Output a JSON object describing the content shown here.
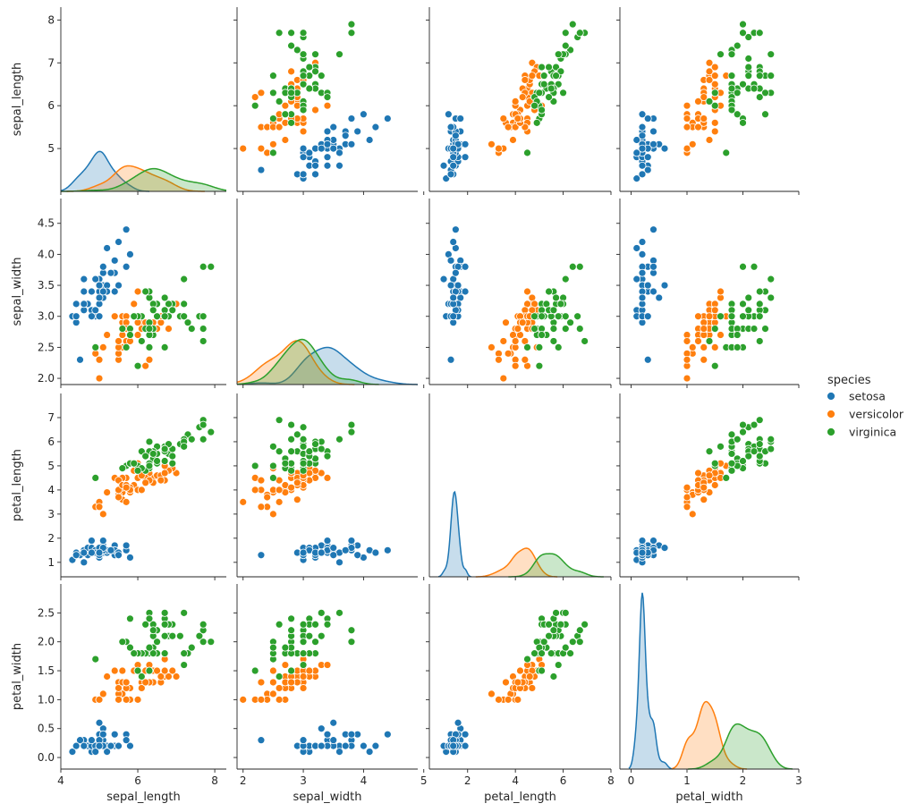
{
  "chart_data": {
    "type": "pairplot",
    "variables": [
      "sepal_length",
      "sepal_width",
      "petal_length",
      "petal_width"
    ],
    "hue": "species",
    "legend": {
      "title": "species",
      "entries": [
        "setosa",
        "versicolor",
        "virginica"
      ],
      "placement": "right"
    },
    "colors": {
      "setosa": "#1f77b4",
      "versicolor": "#ff7f0e",
      "virginica": "#2ca02c"
    },
    "axes": {
      "sepal_length": {
        "range": [
          4.0,
          8.3
        ],
        "ticks": [
          "4",
          "6",
          "8"
        ],
        "ticks_left": [
          "5",
          "6",
          "7",
          "8"
        ]
      },
      "sepal_width": {
        "range": [
          1.9,
          4.9
        ],
        "ticks": [
          "2",
          "3",
          "4",
          "5"
        ],
        "ticks_left": [
          "2.0",
          "2.5",
          "3.0",
          "3.5",
          "4.0",
          "4.5"
        ]
      },
      "petal_length": {
        "range": [
          0.4,
          8.0
        ],
        "ticks": [
          "2",
          "4",
          "6",
          "8"
        ],
        "ticks_left": [
          "1",
          "2",
          "3",
          "4",
          "5",
          "6",
          "7"
        ]
      },
      "petal_width": {
        "range": [
          -0.2,
          3.0
        ],
        "ticks": [
          "0",
          "1",
          "2",
          "3"
        ],
        "ticks_left": [
          "0.0",
          "0.5",
          "1.0",
          "1.5",
          "2.0",
          "2.5"
        ]
      }
    },
    "diagonal": "kde",
    "offdiagonal": "scatter",
    "data": {
      "setosa": [
        [
          5.1,
          3.5,
          1.4,
          0.2
        ],
        [
          4.9,
          3.0,
          1.4,
          0.2
        ],
        [
          4.7,
          3.2,
          1.3,
          0.2
        ],
        [
          4.6,
          3.1,
          1.5,
          0.2
        ],
        [
          5.0,
          3.6,
          1.4,
          0.2
        ],
        [
          5.4,
          3.9,
          1.7,
          0.4
        ],
        [
          4.6,
          3.4,
          1.4,
          0.3
        ],
        [
          5.0,
          3.4,
          1.5,
          0.2
        ],
        [
          4.4,
          2.9,
          1.4,
          0.2
        ],
        [
          4.9,
          3.1,
          1.5,
          0.1
        ],
        [
          5.4,
          3.7,
          1.5,
          0.2
        ],
        [
          4.8,
          3.4,
          1.6,
          0.2
        ],
        [
          4.8,
          3.0,
          1.4,
          0.1
        ],
        [
          4.3,
          3.0,
          1.1,
          0.1
        ],
        [
          5.8,
          4.0,
          1.2,
          0.2
        ],
        [
          5.7,
          4.4,
          1.5,
          0.4
        ],
        [
          5.4,
          3.9,
          1.3,
          0.4
        ],
        [
          5.1,
          3.5,
          1.4,
          0.3
        ],
        [
          5.7,
          3.8,
          1.7,
          0.3
        ],
        [
          5.1,
          3.8,
          1.5,
          0.3
        ],
        [
          5.4,
          3.4,
          1.7,
          0.2
        ],
        [
          5.1,
          3.7,
          1.5,
          0.4
        ],
        [
          4.6,
          3.6,
          1.0,
          0.2
        ],
        [
          5.1,
          3.3,
          1.7,
          0.5
        ],
        [
          4.8,
          3.4,
          1.9,
          0.2
        ],
        [
          5.0,
          3.0,
          1.6,
          0.2
        ],
        [
          5.0,
          3.4,
          1.6,
          0.4
        ],
        [
          5.2,
          3.5,
          1.5,
          0.2
        ],
        [
          5.2,
          3.4,
          1.4,
          0.2
        ],
        [
          4.7,
          3.2,
          1.6,
          0.2
        ],
        [
          4.8,
          3.1,
          1.6,
          0.2
        ],
        [
          5.4,
          3.4,
          1.5,
          0.4
        ],
        [
          5.2,
          4.1,
          1.5,
          0.1
        ],
        [
          5.5,
          4.2,
          1.4,
          0.2
        ],
        [
          4.9,
          3.1,
          1.5,
          0.2
        ],
        [
          5.0,
          3.2,
          1.2,
          0.2
        ],
        [
          5.5,
          3.5,
          1.3,
          0.2
        ],
        [
          4.9,
          3.6,
          1.4,
          0.1
        ],
        [
          4.4,
          3.0,
          1.3,
          0.2
        ],
        [
          5.1,
          3.4,
          1.5,
          0.2
        ],
        [
          5.0,
          3.5,
          1.3,
          0.3
        ],
        [
          4.5,
          2.3,
          1.3,
          0.3
        ],
        [
          4.4,
          3.2,
          1.3,
          0.2
        ],
        [
          5.0,
          3.5,
          1.6,
          0.6
        ],
        [
          5.1,
          3.8,
          1.9,
          0.4
        ],
        [
          4.8,
          3.0,
          1.4,
          0.3
        ],
        [
          5.1,
          3.8,
          1.6,
          0.2
        ],
        [
          4.6,
          3.2,
          1.4,
          0.2
        ],
        [
          5.3,
          3.7,
          1.5,
          0.2
        ],
        [
          5.0,
          3.3,
          1.4,
          0.2
        ]
      ],
      "versicolor": [
        [
          7.0,
          3.2,
          4.7,
          1.4
        ],
        [
          6.4,
          3.2,
          4.5,
          1.5
        ],
        [
          6.9,
          3.1,
          4.9,
          1.5
        ],
        [
          5.5,
          2.3,
          4.0,
          1.3
        ],
        [
          6.5,
          2.8,
          4.6,
          1.5
        ],
        [
          5.7,
          2.8,
          4.5,
          1.3
        ],
        [
          6.3,
          3.3,
          4.7,
          1.6
        ],
        [
          4.9,
          2.4,
          3.3,
          1.0
        ],
        [
          6.6,
          2.9,
          4.6,
          1.3
        ],
        [
          5.2,
          2.7,
          3.9,
          1.4
        ],
        [
          5.0,
          2.0,
          3.5,
          1.0
        ],
        [
          5.9,
          3.0,
          4.2,
          1.5
        ],
        [
          6.0,
          2.2,
          4.0,
          1.0
        ],
        [
          6.1,
          2.9,
          4.7,
          1.4
        ],
        [
          5.6,
          2.9,
          3.6,
          1.3
        ],
        [
          6.7,
          3.1,
          4.4,
          1.4
        ],
        [
          5.6,
          3.0,
          4.5,
          1.5
        ],
        [
          5.8,
          2.7,
          4.1,
          1.0
        ],
        [
          6.2,
          2.2,
          4.5,
          1.5
        ],
        [
          5.6,
          2.5,
          3.9,
          1.1
        ],
        [
          5.9,
          3.2,
          4.8,
          1.8
        ],
        [
          6.1,
          2.8,
          4.0,
          1.3
        ],
        [
          6.3,
          2.5,
          4.9,
          1.5
        ],
        [
          6.1,
          2.8,
          4.7,
          1.2
        ],
        [
          6.4,
          2.9,
          4.3,
          1.3
        ],
        [
          6.6,
          3.0,
          4.4,
          1.4
        ],
        [
          6.8,
          2.8,
          4.8,
          1.4
        ],
        [
          6.7,
          3.0,
          5.0,
          1.7
        ],
        [
          6.0,
          2.9,
          4.5,
          1.5
        ],
        [
          5.7,
          2.6,
          3.5,
          1.0
        ],
        [
          5.5,
          2.4,
          3.8,
          1.1
        ],
        [
          5.5,
          2.4,
          3.7,
          1.0
        ],
        [
          5.8,
          2.7,
          3.9,
          1.2
        ],
        [
          6.0,
          2.7,
          5.1,
          1.6
        ],
        [
          5.4,
          3.0,
          4.5,
          1.5
        ],
        [
          6.0,
          3.4,
          4.5,
          1.6
        ],
        [
          6.7,
          3.1,
          4.7,
          1.5
        ],
        [
          6.3,
          2.3,
          4.4,
          1.3
        ],
        [
          5.6,
          3.0,
          4.1,
          1.3
        ],
        [
          5.5,
          2.5,
          4.0,
          1.3
        ],
        [
          5.5,
          2.6,
          4.4,
          1.2
        ],
        [
          6.1,
          3.0,
          4.6,
          1.4
        ],
        [
          5.8,
          2.6,
          4.0,
          1.2
        ],
        [
          5.0,
          2.3,
          3.3,
          1.0
        ],
        [
          5.6,
          2.7,
          4.2,
          1.3
        ],
        [
          5.7,
          3.0,
          4.2,
          1.2
        ],
        [
          5.7,
          2.9,
          4.2,
          1.3
        ],
        [
          6.2,
          2.9,
          4.3,
          1.3
        ],
        [
          5.1,
          2.5,
          3.0,
          1.1
        ],
        [
          5.7,
          2.8,
          4.1,
          1.3
        ]
      ],
      "virginica": [
        [
          6.3,
          3.3,
          6.0,
          2.5
        ],
        [
          5.8,
          2.7,
          5.1,
          1.9
        ],
        [
          7.1,
          3.0,
          5.9,
          2.1
        ],
        [
          6.3,
          2.9,
          5.6,
          1.8
        ],
        [
          6.5,
          3.0,
          5.8,
          2.2
        ],
        [
          7.6,
          3.0,
          6.6,
          2.1
        ],
        [
          4.9,
          2.5,
          4.5,
          1.7
        ],
        [
          7.3,
          2.9,
          6.3,
          1.8
        ],
        [
          6.7,
          2.5,
          5.8,
          1.8
        ],
        [
          7.2,
          3.6,
          6.1,
          2.5
        ],
        [
          6.5,
          3.2,
          5.1,
          2.0
        ],
        [
          6.4,
          2.7,
          5.3,
          1.9
        ],
        [
          6.8,
          3.0,
          5.5,
          2.1
        ],
        [
          5.7,
          2.5,
          5.0,
          2.0
        ],
        [
          5.8,
          2.8,
          5.1,
          2.4
        ],
        [
          6.4,
          3.2,
          5.3,
          2.3
        ],
        [
          6.5,
          3.0,
          5.5,
          1.8
        ],
        [
          7.7,
          3.8,
          6.7,
          2.2
        ],
        [
          7.7,
          2.6,
          6.9,
          2.3
        ],
        [
          6.0,
          2.2,
          5.0,
          1.5
        ],
        [
          6.9,
          3.2,
          5.7,
          2.3
        ],
        [
          5.6,
          2.8,
          4.9,
          2.0
        ],
        [
          7.7,
          2.8,
          6.7,
          2.0
        ],
        [
          6.3,
          2.7,
          4.9,
          1.8
        ],
        [
          6.7,
          3.3,
          5.7,
          2.1
        ],
        [
          7.2,
          3.2,
          6.0,
          1.8
        ],
        [
          6.2,
          2.8,
          4.8,
          1.8
        ],
        [
          6.1,
          3.0,
          4.9,
          1.8
        ],
        [
          6.4,
          2.8,
          5.6,
          2.1
        ],
        [
          7.2,
          3.0,
          5.8,
          1.6
        ],
        [
          7.4,
          2.8,
          6.1,
          1.9
        ],
        [
          7.9,
          3.8,
          6.4,
          2.0
        ],
        [
          6.4,
          2.8,
          5.6,
          2.2
        ],
        [
          6.3,
          2.8,
          5.1,
          1.5
        ],
        [
          6.1,
          2.6,
          5.6,
          1.4
        ],
        [
          7.7,
          3.0,
          6.1,
          2.3
        ],
        [
          6.3,
          3.4,
          5.6,
          2.4
        ],
        [
          6.4,
          3.1,
          5.5,
          1.8
        ],
        [
          6.0,
          3.0,
          4.8,
          1.8
        ],
        [
          6.9,
          3.1,
          5.4,
          2.1
        ],
        [
          6.7,
          3.1,
          5.6,
          2.4
        ],
        [
          6.9,
          3.1,
          5.1,
          2.3
        ],
        [
          5.8,
          2.7,
          5.1,
          1.9
        ],
        [
          6.8,
          3.2,
          5.9,
          2.3
        ],
        [
          6.7,
          3.3,
          5.7,
          2.5
        ],
        [
          6.7,
          3.0,
          5.2,
          2.3
        ],
        [
          6.3,
          2.5,
          5.0,
          1.9
        ],
        [
          6.5,
          3.0,
          5.2,
          2.0
        ],
        [
          6.2,
          3.4,
          5.4,
          2.3
        ],
        [
          5.9,
          3.0,
          5.1,
          1.8
        ]
      ]
    }
  }
}
